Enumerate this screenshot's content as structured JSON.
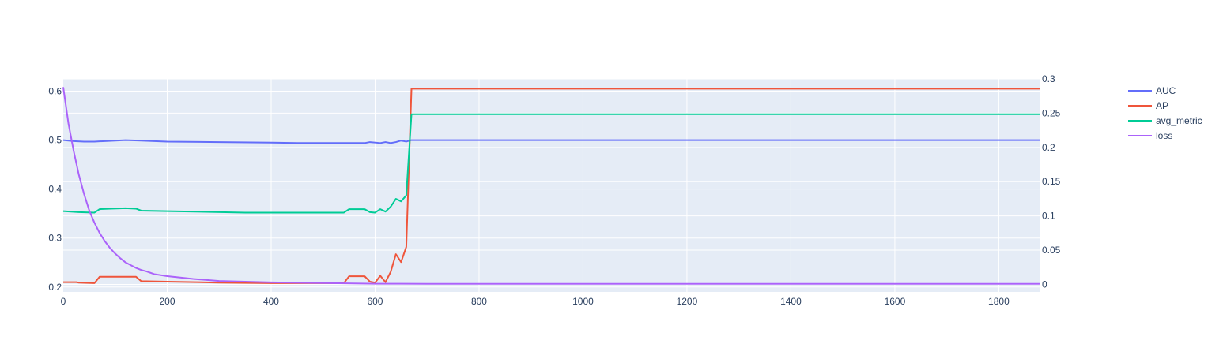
{
  "chart_data": {
    "type": "line",
    "plot_bg": "#e5ecf6",
    "paper_bg": "#ffffff",
    "grid": true,
    "grid_color": "#ffffff",
    "legend_position": "top-right",
    "x_axis": {
      "range": [
        0,
        1880
      ],
      "ticks": [
        0,
        200,
        400,
        600,
        800,
        1000,
        1200,
        1400,
        1600,
        1800
      ],
      "tick_labels": [
        "0",
        "200",
        "400",
        "600",
        "800",
        "1000",
        "1200",
        "1400",
        "1600",
        "1800"
      ]
    },
    "y_axis_left": {
      "range": [
        0.19,
        0.625
      ],
      "ticks": [
        0.2,
        0.3,
        0.4,
        0.5,
        0.6
      ],
      "tick_labels": [
        "0.2",
        "0.3",
        "0.4",
        "0.5",
        "0.6"
      ]
    },
    "y_axis_right": {
      "range": [
        -0.011,
        0.3
      ],
      "ticks": [
        0,
        0.05,
        0.1,
        0.15,
        0.2,
        0.25,
        0.3
      ],
      "tick_labels": [
        "0",
        "0.05",
        "0.1",
        "0.15",
        "0.2",
        "0.25",
        "0.3"
      ]
    },
    "series": [
      {
        "name": "AUC",
        "axis": "left",
        "color": "#636efa",
        "points": [
          [
            0,
            0.5
          ],
          [
            20,
            0.498
          ],
          [
            40,
            0.497
          ],
          [
            60,
            0.497
          ],
          [
            80,
            0.498
          ],
          [
            100,
            0.499
          ],
          [
            120,
            0.5
          ],
          [
            150,
            0.499
          ],
          [
            200,
            0.497
          ],
          [
            300,
            0.496
          ],
          [
            400,
            0.495
          ],
          [
            450,
            0.494
          ],
          [
            500,
            0.494
          ],
          [
            580,
            0.494
          ],
          [
            590,
            0.496
          ],
          [
            600,
            0.495
          ],
          [
            610,
            0.494
          ],
          [
            620,
            0.496
          ],
          [
            630,
            0.494
          ],
          [
            640,
            0.496
          ],
          [
            650,
            0.499
          ],
          [
            660,
            0.497
          ],
          [
            670,
            0.5
          ],
          [
            1880,
            0.5
          ]
        ]
      },
      {
        "name": "AP",
        "axis": "left",
        "color": "#ef553b",
        "points": [
          [
            0,
            0.21
          ],
          [
            25,
            0.21
          ],
          [
            30,
            0.209
          ],
          [
            60,
            0.208
          ],
          [
            70,
            0.221
          ],
          [
            90,
            0.221
          ],
          [
            140,
            0.221
          ],
          [
            150,
            0.212
          ],
          [
            200,
            0.211
          ],
          [
            300,
            0.209
          ],
          [
            400,
            0.208
          ],
          [
            540,
            0.208
          ],
          [
            550,
            0.222
          ],
          [
            580,
            0.222
          ],
          [
            590,
            0.211
          ],
          [
            600,
            0.209
          ],
          [
            610,
            0.223
          ],
          [
            620,
            0.21
          ],
          [
            630,
            0.231
          ],
          [
            640,
            0.267
          ],
          [
            650,
            0.251
          ],
          [
            660,
            0.282
          ],
          [
            670,
            0.605
          ],
          [
            1880,
            0.605
          ]
        ]
      },
      {
        "name": "avg_metric",
        "axis": "left",
        "color": "#00cc96",
        "points": [
          [
            0,
            0.355
          ],
          [
            30,
            0.353
          ],
          [
            60,
            0.352
          ],
          [
            70,
            0.359
          ],
          [
            90,
            0.36
          ],
          [
            120,
            0.361
          ],
          [
            140,
            0.36
          ],
          [
            150,
            0.356
          ],
          [
            200,
            0.355
          ],
          [
            350,
            0.352
          ],
          [
            400,
            0.352
          ],
          [
            540,
            0.352
          ],
          [
            550,
            0.359
          ],
          [
            580,
            0.359
          ],
          [
            590,
            0.353
          ],
          [
            600,
            0.352
          ],
          [
            610,
            0.359
          ],
          [
            620,
            0.354
          ],
          [
            630,
            0.364
          ],
          [
            640,
            0.38
          ],
          [
            650,
            0.375
          ],
          [
            660,
            0.387
          ],
          [
            670,
            0.553
          ],
          [
            1880,
            0.553
          ]
        ]
      },
      {
        "name": "loss",
        "axis": "right",
        "color": "#ab63fa",
        "points": [
          [
            0,
            0.288
          ],
          [
            10,
            0.235
          ],
          [
            20,
            0.195
          ],
          [
            30,
            0.16
          ],
          [
            40,
            0.132
          ],
          [
            50,
            0.108
          ],
          [
            60,
            0.09
          ],
          [
            70,
            0.075
          ],
          [
            80,
            0.063
          ],
          [
            90,
            0.053
          ],
          [
            100,
            0.045
          ],
          [
            110,
            0.038
          ],
          [
            120,
            0.032
          ],
          [
            130,
            0.028
          ],
          [
            140,
            0.024
          ],
          [
            150,
            0.021
          ],
          [
            160,
            0.019
          ],
          [
            175,
            0.015
          ],
          [
            200,
            0.012
          ],
          [
            250,
            0.008
          ],
          [
            300,
            0.005
          ],
          [
            400,
            0.003
          ],
          [
            500,
            0.002
          ],
          [
            600,
            0.001
          ],
          [
            700,
            0.0008
          ],
          [
            1000,
            0.0008
          ],
          [
            1880,
            0.0008
          ]
        ]
      }
    ]
  }
}
